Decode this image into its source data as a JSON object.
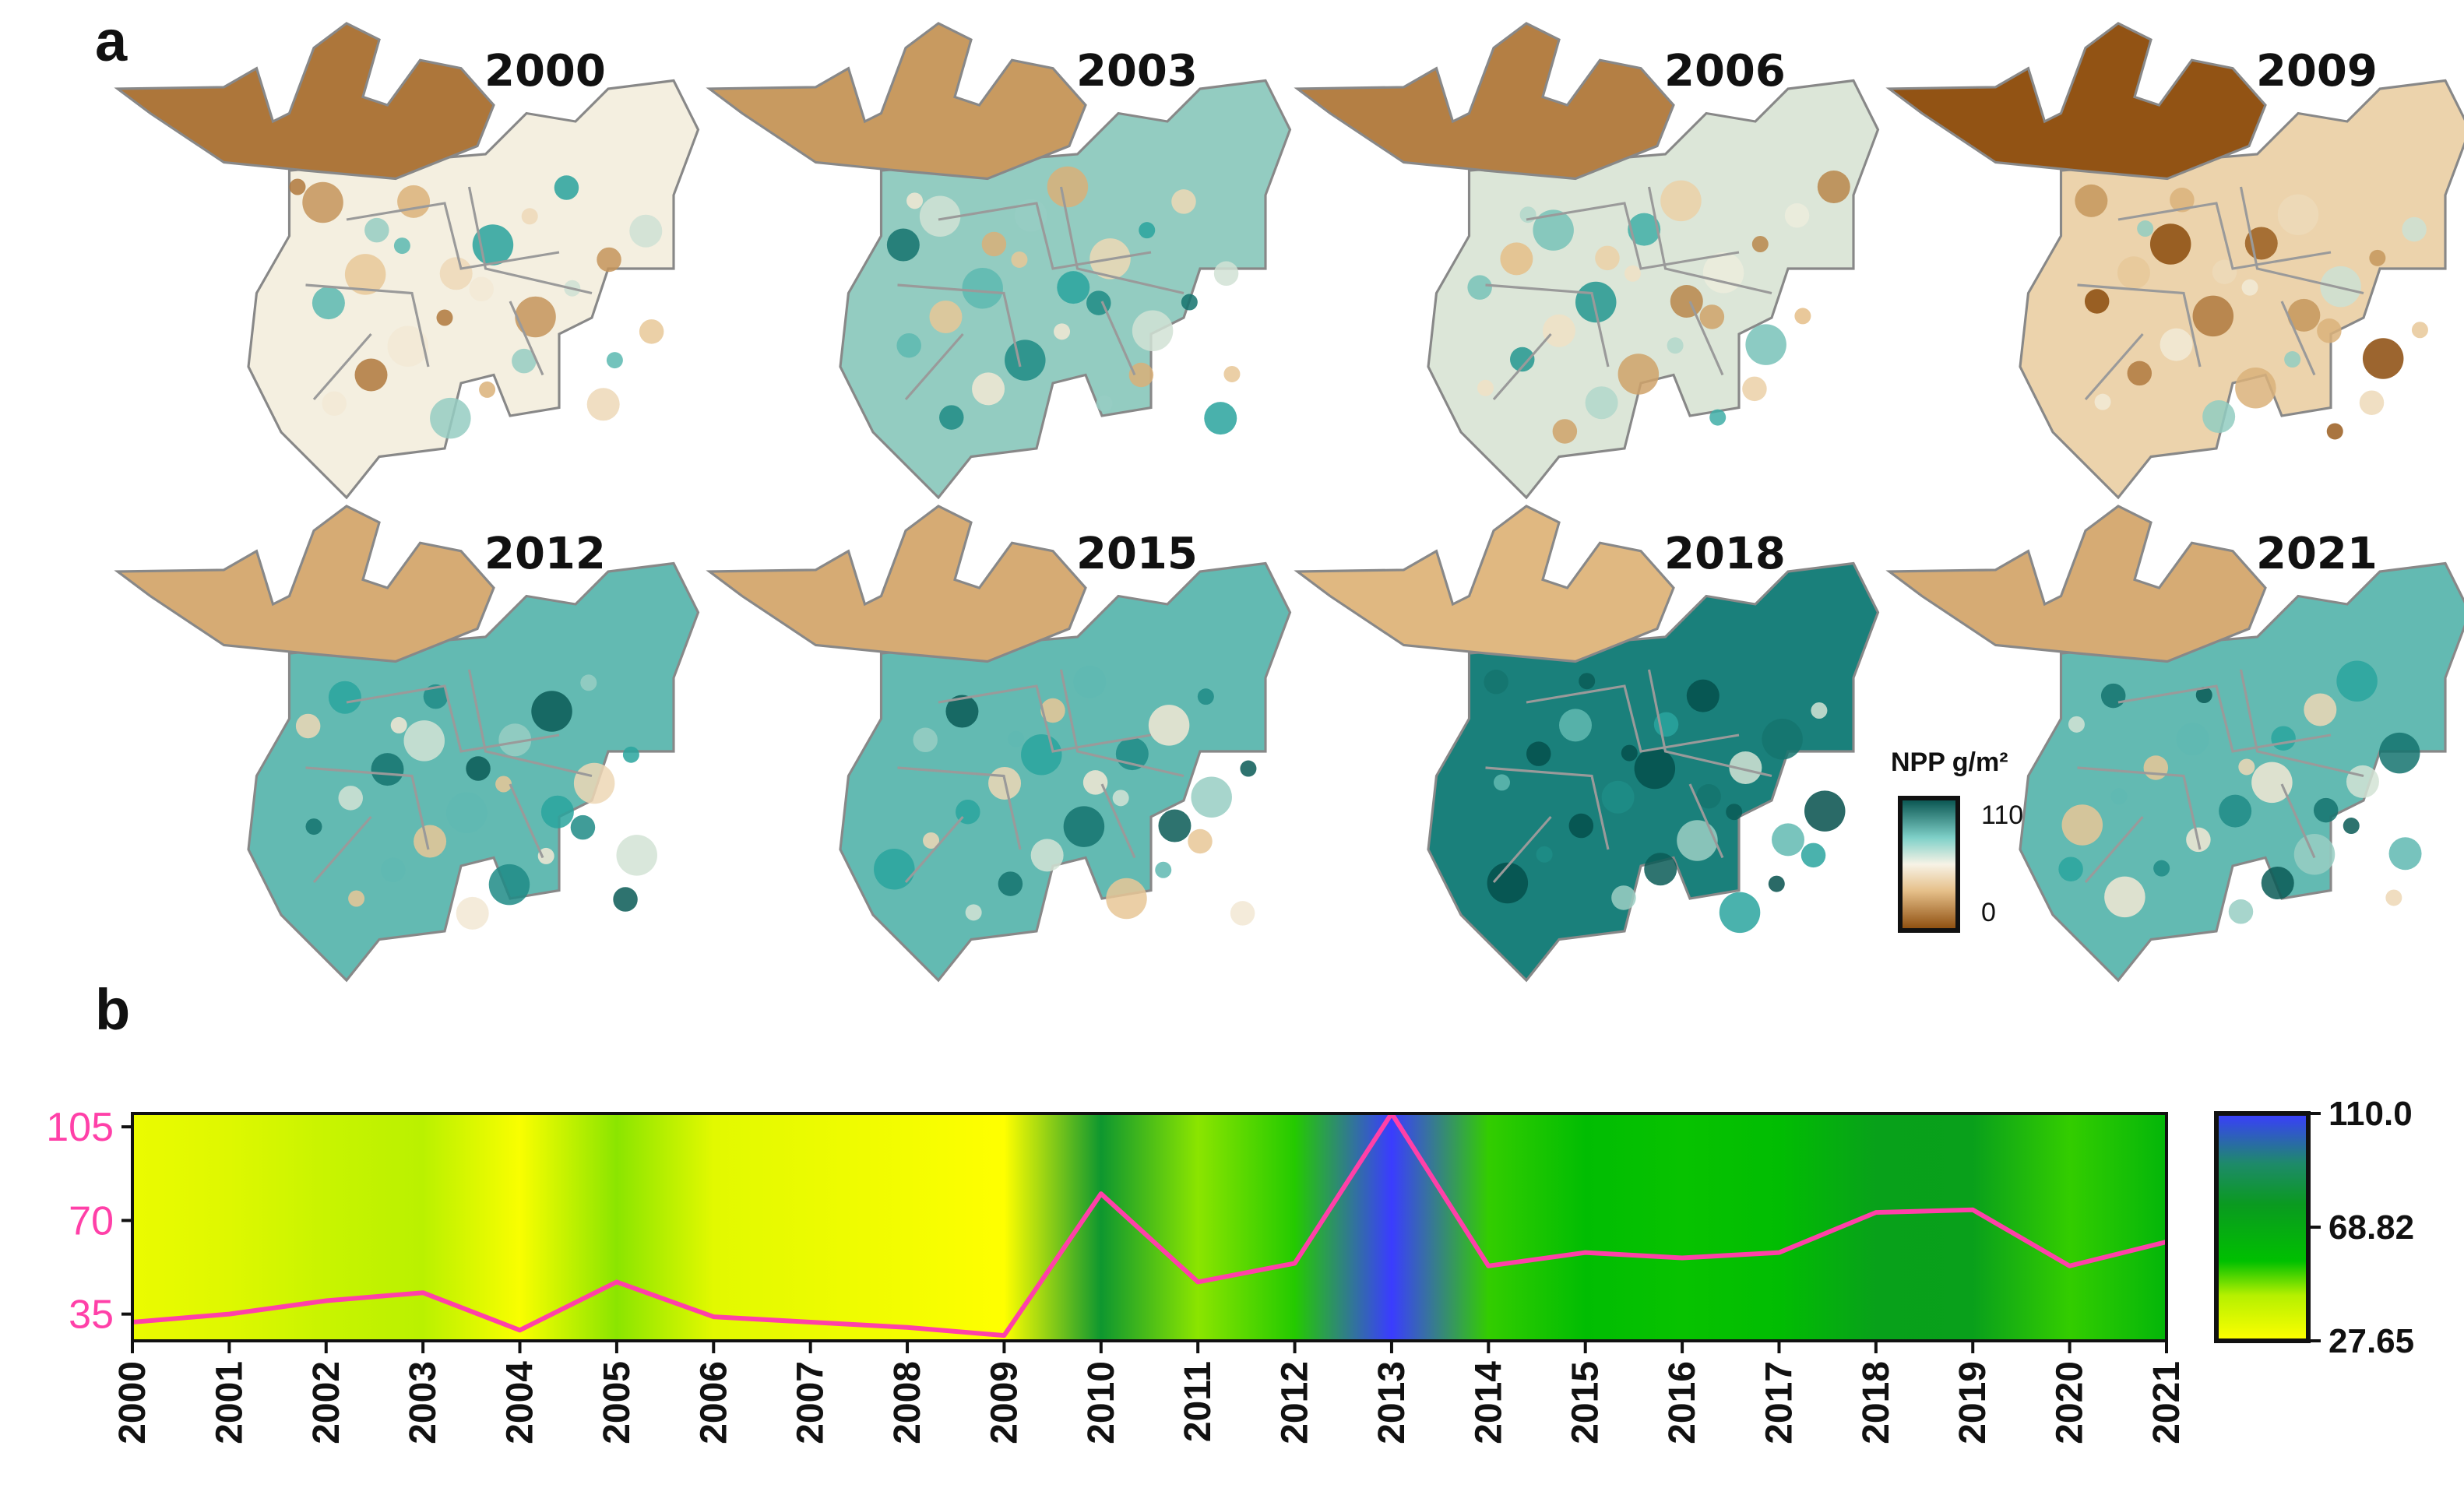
{
  "panel_a": {
    "letter": "a",
    "years": [
      "2000",
      "2003",
      "2006",
      "2009",
      "2012",
      "2015",
      "2018",
      "2021"
    ],
    "greenness": [
      0.25,
      0.45,
      0.3,
      0.05,
      0.55,
      0.55,
      0.85,
      0.55
    ],
    "legend": {
      "title": "NPP g/m²",
      "max_label": "110",
      "min_label": "0"
    }
  },
  "panel_b": {
    "letter": "b"
  },
  "colors": {
    "brown": "#8b4a0a",
    "tan": "#e6c08a",
    "cream": "#f4efe0",
    "teal": "#2aa6a0",
    "dark_teal": "#05504c",
    "line": "#ff40a8",
    "cb_yellow": "#ffff00",
    "cb_green": "#00c000",
    "cb_blue": "#3a3cff"
  },
  "chart_data": {
    "type": "line",
    "title": "",
    "xlabel": "",
    "ylabel": "",
    "x": [
      "2000",
      "2001",
      "2002",
      "2003",
      "2004",
      "2005",
      "2006",
      "2007",
      "2008",
      "2009",
      "2010",
      "2011",
      "2012",
      "2013",
      "2014",
      "2015",
      "2016",
      "2017",
      "2018",
      "2019",
      "2020",
      "2021"
    ],
    "series": [
      {
        "name": "NPP",
        "values": [
          32,
          35,
          40,
          43,
          29,
          47,
          34,
          32,
          30,
          27,
          80,
          47,
          54,
          110,
          53,
          58,
          56,
          58,
          73,
          74,
          53,
          62
        ]
      }
    ],
    "ylim": [
      25,
      110
    ],
    "yticks": [
      "35",
      "70",
      "105"
    ],
    "colorbar": {
      "min": 27.65,
      "mid": 68.82,
      "max": 110.0,
      "labels": [
        "110.0",
        "68.82",
        "27.65"
      ]
    },
    "background_heatmap": "annual NPP shown as colour band behind the line"
  }
}
